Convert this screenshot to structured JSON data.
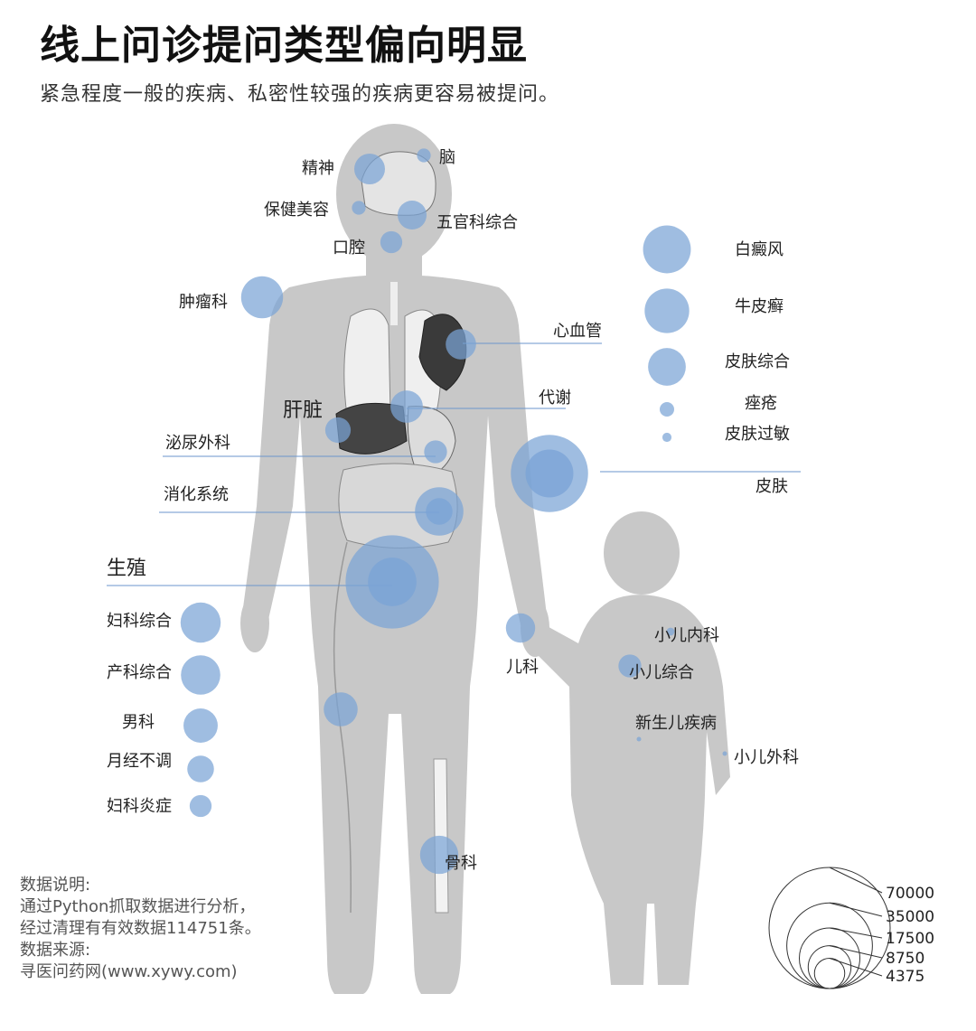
{
  "header": {
    "title": "线上问诊提问类型偏向明显",
    "subtitle": "紧急程度一般的疾病、私密性较强的疾病更容易被提问。"
  },
  "notes": {
    "l1": "数据说明:",
    "l2": "通过Python抓取数据进行分析，",
    "l3": "经过清理有有效数据114751条。",
    "l4": "数据来源:",
    "l5": "寻医问药网(www.xywy.com)"
  },
  "colors": {
    "bubble": "#7aa3d6",
    "body": "#c8c8c8",
    "line": "#6b96cc",
    "organ": "#555555"
  },
  "chart_data": {
    "type": "bubble",
    "title": "线上问诊提问类型偏向明显",
    "subtitle": "紧急程度一般的疾病、私密性较强的疾病更容易被提问。",
    "size_legend": {
      "values": [
        70000,
        35000,
        17500,
        8750,
        4375
      ],
      "labels": [
        "70000",
        "35000",
        "17500",
        "8750",
        "4375"
      ]
    },
    "categories": [
      {
        "id": "jingshen",
        "label": "精神",
        "value": 4500
      },
      {
        "id": "nao",
        "label": "脑",
        "value": 900
      },
      {
        "id": "baojian",
        "label": "保健美容",
        "value": 900
      },
      {
        "id": "wuguan",
        "label": "五官科综合",
        "value": 4000
      },
      {
        "id": "kouqiang",
        "label": "口腔",
        "value": 2300
      },
      {
        "id": "zhongliu",
        "label": "肿瘤科",
        "value": 8400
      },
      {
        "id": "xinxueguan",
        "label": "心血管",
        "value": 4400
      },
      {
        "id": "daixie",
        "label": "代谢",
        "value": 5000
      },
      {
        "id": "ganzang",
        "label": "肝脏",
        "value": 3100
      },
      {
        "id": "miniao",
        "label": "泌尿外科",
        "value": 2500
      },
      {
        "id": "xiaohua",
        "label": "消化系统",
        "value": 11200
      },
      {
        "id": "shengzhi",
        "label": "生殖",
        "value": 41500
      },
      {
        "id": "pifu",
        "label": "皮肤",
        "value": 28500
      },
      {
        "id": "baidianfeng",
        "label": "白癜风",
        "value": 10900
      },
      {
        "id": "niupixuan",
        "label": "牛皮癣",
        "value": 9500
      },
      {
        "id": "pifuzonghe",
        "label": "皮肤综合",
        "value": 6800
      },
      {
        "id": "cuochuang",
        "label": "痤疮",
        "value": 1000
      },
      {
        "id": "pifuguomin",
        "label": "皮肤过敏",
        "value": 400
      },
      {
        "id": "fukezonghe",
        "label": "妇科综合",
        "value": 7700
      },
      {
        "id": "chankezonghe",
        "label": "产科综合",
        "value": 7400
      },
      {
        "id": "nanke",
        "label": "男科",
        "value": 5600
      },
      {
        "id": "yuejingbutiao",
        "label": "月经不调",
        "value": 3400
      },
      {
        "id": "fukeyanzheng",
        "label": "妇科炎症",
        "value": 2300
      },
      {
        "id": "erke",
        "label": "儿科",
        "value": 4100
      },
      {
        "id": "xiaoerneike",
        "label": "小儿内科",
        "value": 300
      },
      {
        "id": "xiaoerzonghe",
        "label": "小儿综合",
        "value": 2500
      },
      {
        "id": "xinshenger",
        "label": "新生儿疾病",
        "value": 60
      },
      {
        "id": "xiaoerwaike",
        "label": "小儿外科",
        "value": 40
      },
      {
        "id": "guke",
        "label": "骨科",
        "value": 7000
      },
      {
        "id": "bone-legbubble",
        "label": "",
        "value": 5500
      }
    ]
  }
}
